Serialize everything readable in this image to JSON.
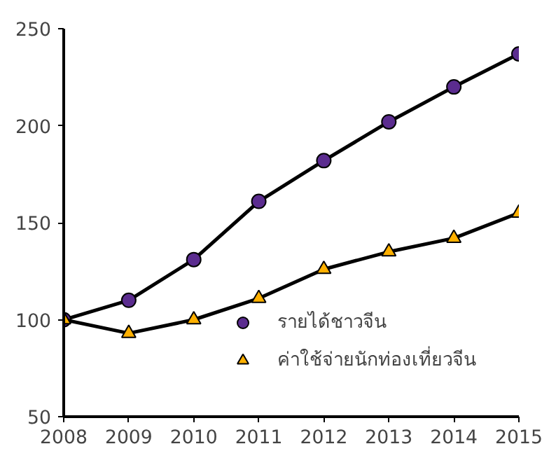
{
  "chart_data": {
    "type": "line",
    "x": [
      2008,
      2009,
      2010,
      2011,
      2012,
      2013,
      2014,
      2015
    ],
    "series": [
      {
        "name": "รายได้ชาวจีน",
        "color": "#5b2c8f",
        "marker": "circle",
        "values": [
          100,
          110,
          131,
          161,
          182,
          202,
          220,
          237
        ]
      },
      {
        "name": "ค่าใช้จ่ายนักท่องเที่ยวจีน",
        "color": "#ffb000",
        "marker": "triangle",
        "values": [
          100,
          93,
          100,
          111,
          126,
          135,
          142,
          155
        ]
      }
    ],
    "xlim": [
      2008,
      2015
    ],
    "xticks": [
      2008,
      2009,
      2010,
      2011,
      2012,
      2013,
      2014,
      2015
    ],
    "ylim": [
      50,
      250
    ],
    "yticks": [
      50,
      100,
      150,
      200,
      250
    ],
    "grid": false,
    "legend": "bottom right",
    "line_style": "solid"
  }
}
